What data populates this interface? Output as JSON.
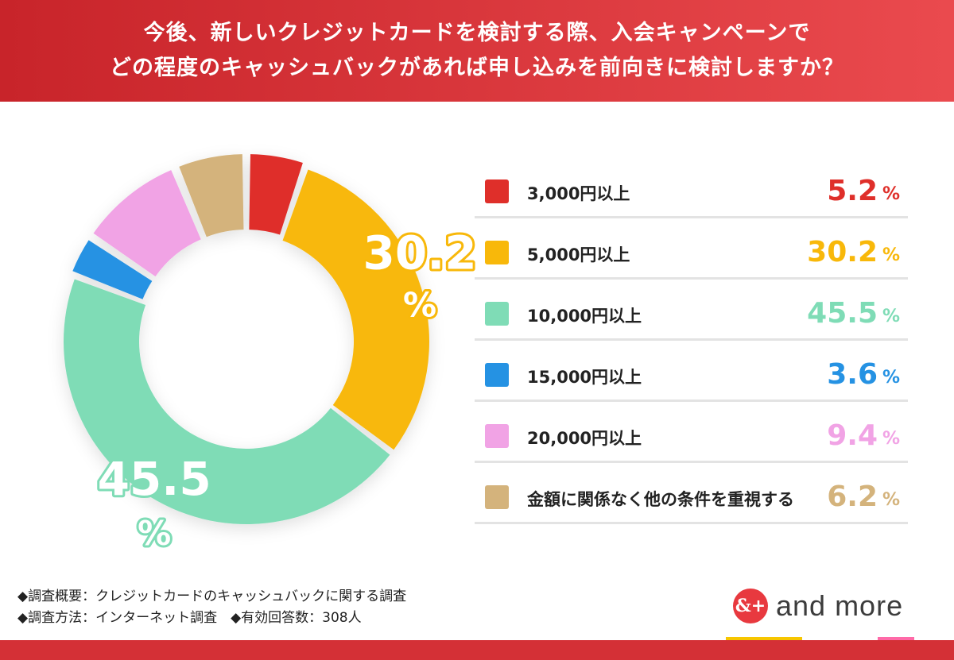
{
  "header": {
    "line1": "今後、新しいクレジットカードを検討する際、入会キャンペーンで",
    "line2": "どの程度のキャッシュバックがあれば申し込みを前向きに検討しますか？"
  },
  "chart_data": {
    "type": "pie",
    "style": "donut",
    "unit": "%",
    "categories": [
      "3,000円以上",
      "5,000円以上",
      "10,000円以上",
      "15,000円以上",
      "20,000円以上",
      "金額に関係なく他の条件を重視する"
    ],
    "values": [
      5.2,
      30.2,
      45.5,
      3.6,
      9.4,
      6.2
    ],
    "value_labels": [
      "5.2",
      "30.2",
      "45.5",
      "3.6",
      "9.4",
      "6.2"
    ],
    "colors": [
      "#df2f2a",
      "#f8b80a",
      "#7fdcb6",
      "#2592e3",
      "#f1a3e5",
      "#d4b37c"
    ],
    "slice_labels": [
      {
        "index": 1,
        "value": "30.2",
        "unit": "%"
      },
      {
        "index": 2,
        "value": "45.5",
        "unit": "%"
      }
    ],
    "legend_position": "right"
  },
  "notes": {
    "line1": "◆調査概要：クレジットカードのキャッシュバックに関する調査",
    "line2": "◆調査方法：インターネット調査　◆有効回答数：308人"
  },
  "brand": {
    "mark": "&+",
    "name": "and more",
    "color": "#e8393f"
  }
}
